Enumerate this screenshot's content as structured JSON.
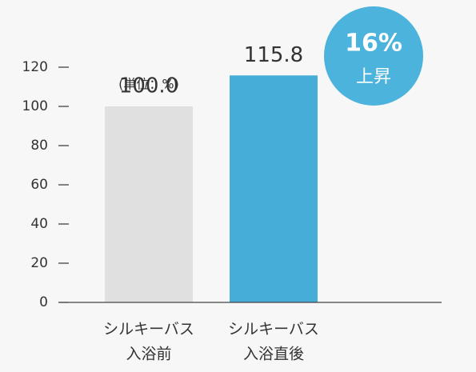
{
  "chart_data": {
    "type": "bar",
    "categories": [
      [
        "シルキーバス",
        "入浴前"
      ],
      [
        "シルキーバス",
        "入浴直後"
      ]
    ],
    "values": [
      100.0,
      115.8
    ],
    "value_labels": [
      "100.0",
      "115.8"
    ],
    "colors": [
      "#e0e0e0",
      "#46acd8"
    ],
    "unit_note": "(単位：%)",
    "badge": {
      "text": "16%",
      "label": "上昇",
      "color": "#4cb3dd"
    },
    "ylim": [
      0,
      120
    ],
    "yticks": [
      0,
      20,
      40,
      60,
      80,
      100,
      120
    ],
    "grid": false
  }
}
